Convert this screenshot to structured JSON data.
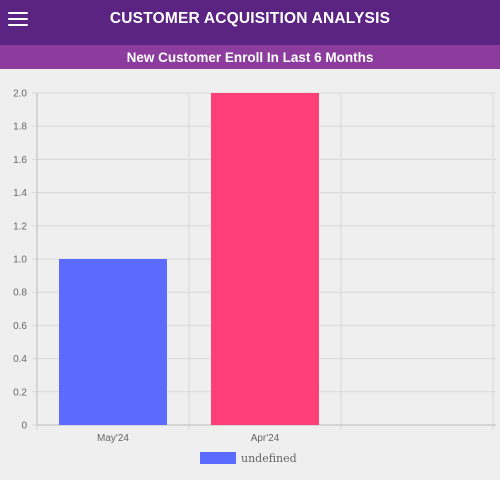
{
  "header": {
    "title": "CUSTOMER ACQUISITION ANALYSIS",
    "menu_icon": "hamburger-menu-icon"
  },
  "subheader": {
    "title": "New Customer Enroll In Last 6 Months"
  },
  "colors": {
    "header_bg": "#5b2382",
    "subheader_bg": "#8b3c9d",
    "page_bg": "#efefef",
    "bar_may": "#5b6bff",
    "bar_apr": "#ff3f78",
    "grid": "#dddddd"
  },
  "chart_data": {
    "type": "bar",
    "categories": [
      "May'24",
      "Apr'24"
    ],
    "values": [
      1,
      2
    ],
    "bar_colors": [
      "#5b6bff",
      "#ff3f78"
    ],
    "series": [
      {
        "name": "undefined",
        "values": [
          1,
          2
        ]
      }
    ],
    "ylim": [
      0,
      2
    ],
    "yticks": [
      "0",
      "0.2",
      "0.4",
      "0.6",
      "0.8",
      "1.0",
      "1.2",
      "1.4",
      "1.6",
      "1.8",
      "2.0"
    ],
    "grid": true,
    "legend": "bottom",
    "legend_label": "undefined",
    "legend_color": "#5b6bff"
  }
}
